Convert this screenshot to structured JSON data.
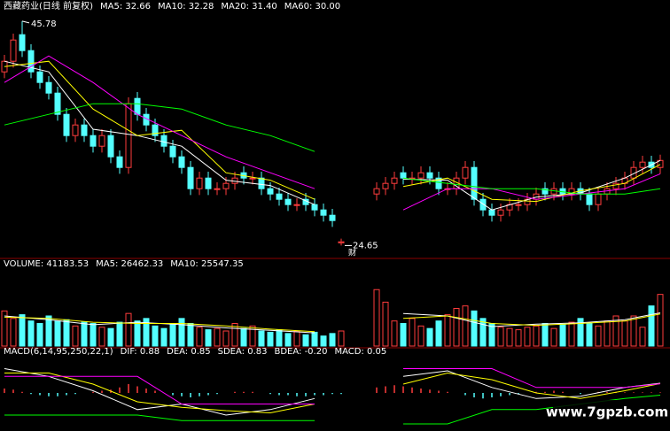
{
  "chart_data": [
    {
      "type": "candlestick",
      "title": "西藏药业(日线 前复权)",
      "xlim": [
        -0.5,
        74.5
      ],
      "ylim": [
        23.6,
        46.6
      ],
      "up_color": "#ff3c3c",
      "down_color": "#54ffff",
      "open": [
        41,
        42,
        44.5,
        43,
        41,
        40,
        39,
        37,
        35,
        36,
        35,
        34,
        35,
        33,
        32,
        38.5,
        37,
        36,
        35,
        34,
        33,
        32,
        30,
        31,
        30,
        30,
        30.5,
        31.5,
        31,
        31,
        30,
        29.5,
        29,
        28.5,
        29,
        28.5,
        28,
        27.5,
        24.9,
        null,
        null,
        null,
        29.5,
        30,
        30.5,
        31.5,
        31,
        31,
        31.5,
        31,
        30,
        30,
        31,
        32,
        29,
        28,
        27.5,
        28,
        28.5,
        28.5,
        29,
        30,
        29.5,
        30,
        29.5,
        30,
        29.5,
        28.5,
        29.5,
        30,
        30.5,
        31,
        32,
        32.5,
        32
      ],
      "high": [
        42.6,
        44.6,
        45.78,
        43.6,
        41.6,
        40.6,
        39.6,
        37.6,
        36.6,
        36.6,
        35.6,
        35.6,
        35.6,
        33.6,
        38.6,
        39.1,
        37.6,
        36.6,
        35.6,
        34.6,
        33.6,
        32.6,
        31.6,
        31.6,
        30.6,
        31.1,
        31.6,
        32.1,
        31.6,
        31.6,
        30.6,
        30.1,
        29.6,
        29.1,
        29.6,
        29.1,
        28.6,
        28.1,
        25.3,
        null,
        null,
        null,
        30.6,
        31.1,
        31.6,
        32.1,
        31.6,
        32.1,
        32.1,
        31.6,
        30.6,
        31.6,
        32.6,
        32.6,
        29.6,
        28.6,
        28.6,
        29.1,
        29.1,
        29.6,
        30.1,
        30.6,
        30.6,
        30.6,
        30.6,
        30.6,
        30.1,
        30.1,
        30.6,
        31.1,
        31.6,
        32.6,
        33.1,
        33.1,
        33.2
      ],
      "low": [
        40.4,
        41.4,
        42.4,
        40.4,
        39.4,
        38.4,
        36.4,
        34.4,
        34.4,
        34.4,
        33.4,
        33.4,
        32.4,
        31.4,
        31.4,
        36.4,
        35.4,
        34.4,
        33.4,
        32.4,
        31.4,
        29.4,
        29.4,
        29.4,
        29.4,
        29.4,
        29.9,
        30.4,
        30.4,
        29.4,
        28.9,
        28.4,
        27.9,
        27.9,
        27.9,
        27.4,
        26.9,
        26.4,
        24.65,
        null,
        null,
        null,
        28.9,
        29.4,
        29.9,
        30.4,
        30.4,
        30.4,
        30.4,
        29.4,
        29.4,
        29.4,
        30.4,
        28.4,
        27.4,
        26.9,
        26.9,
        27.4,
        27.9,
        27.9,
        28.4,
        28.9,
        28.9,
        28.9,
        28.9,
        28.9,
        27.9,
        27.9,
        28.9,
        29.4,
        29.9,
        30.4,
        31.4,
        31.4,
        31.4
      ],
      "close": [
        42,
        44,
        43,
        41,
        40,
        39,
        37,
        35,
        36,
        35,
        34,
        35,
        33,
        32,
        38,
        37,
        36,
        35,
        34,
        33,
        32,
        30,
        31,
        30,
        30,
        30.5,
        31,
        31,
        31,
        30,
        29.5,
        29,
        28.5,
        28.5,
        28.5,
        28,
        27.5,
        27,
        25,
        null,
        null,
        null,
        30,
        30.5,
        31,
        31,
        31,
        31.5,
        31,
        30,
        30,
        31,
        32,
        29,
        28,
        27.5,
        28,
        28.5,
        28.5,
        29,
        29.5,
        29.5,
        30,
        29.5,
        30,
        29.5,
        28.5,
        29.5,
        30,
        30.5,
        31,
        32,
        32.5,
        32,
        32.66
      ],
      "max_label": {
        "value": 45.78,
        "x": 2
      },
      "min_label": {
        "value": 24.65,
        "x": 38
      },
      "event_marker": "财",
      "series": [
        {
          "name": "MA5: 32.66",
          "color": "#ffffff",
          "x": [
            0,
            5,
            10,
            15,
            20,
            25,
            30,
            35,
            40,
            45,
            50,
            55,
            60,
            65,
            70,
            74
          ],
          "values": [
            42,
            41,
            35.6,
            35,
            34,
            30.8,
            30.3,
            28.5,
            null,
            30.9,
            30.8,
            28,
            29.2,
            29.6,
            31,
            32.66
          ]
        },
        {
          "name": "MA10: 32.28",
          "color": "#ffff00",
          "x": [
            0,
            5,
            10,
            15,
            20,
            25,
            30,
            35,
            40,
            45,
            50,
            55,
            60,
            65,
            70,
            74
          ],
          "values": [
            41.5,
            42,
            37.5,
            35,
            35.5,
            31.5,
            30.8,
            29,
            null,
            30.2,
            31,
            29,
            28.8,
            29.8,
            30.5,
            32.28
          ]
        },
        {
          "name": "MA20: 31.40",
          "color": "#ff00ff",
          "x": [
            0,
            5,
            10,
            15,
            20,
            25,
            30,
            35,
            40,
            45,
            50,
            55,
            60,
            65,
            70,
            74
          ],
          "values": [
            40,
            42.5,
            40,
            37,
            35,
            33,
            31.5,
            30,
            null,
            28,
            30,
            30,
            29,
            29.5,
            30,
            31.4
          ]
        },
        {
          "name": "MA60: 30.00",
          "color": "#00ff00",
          "x": [
            0,
            5,
            10,
            15,
            20,
            25,
            30,
            35,
            40,
            45,
            50,
            55,
            60,
            65,
            70,
            74
          ],
          "values": [
            36,
            37,
            38,
            38,
            37.5,
            36,
            35,
            33.5,
            null,
            31,
            30.5,
            30,
            30,
            29.5,
            29.5,
            30
          ]
        }
      ]
    },
    {
      "type": "bar",
      "title": "VOLUME: 41183.53",
      "xlim": [
        -0.5,
        74.5
      ],
      "ylim": [
        0,
        60000
      ],
      "up_color": "#ff3c3c",
      "down_color": "#54ffff",
      "values": [
        28000,
        22000,
        25000,
        20000,
        18000,
        24000,
        20000,
        21000,
        16000,
        19000,
        18000,
        15000,
        14000,
        19000,
        26000,
        20000,
        22000,
        16000,
        14000,
        17000,
        22000,
        18000,
        15000,
        13000,
        14000,
        12000,
        18000,
        14000,
        16000,
        12000,
        11000,
        13000,
        10000,
        12000,
        9000,
        11000,
        8000,
        10000,
        12000,
        null,
        null,
        null,
        45000,
        35000,
        20000,
        18000,
        22000,
        16000,
        14000,
        20000,
        25000,
        30000,
        32000,
        28000,
        22000,
        18000,
        15000,
        14000,
        13000,
        15000,
        16000,
        18000,
        14000,
        17000,
        19000,
        22000,
        18000,
        16000,
        20000,
        24000,
        20000,
        24000,
        15000,
        32000,
        41183.53
      ],
      "series": [
        {
          "name": "MA5: 26462.33",
          "color": "#ffffff",
          "x": [
            0,
            5,
            10,
            15,
            20,
            25,
            30,
            35,
            40,
            45,
            50,
            55,
            60,
            65,
            70,
            74
          ],
          "values": [
            24000,
            21000,
            17000,
            19000,
            17000,
            14500,
            12500,
            10500,
            null,
            26000,
            24000,
            15500,
            17500,
            18500,
            21000,
            26462.33
          ]
        },
        {
          "name": "MA10: 25547.35",
          "color": "#ffff00",
          "x": [
            0,
            5,
            10,
            15,
            20,
            25,
            30,
            35,
            40,
            45,
            50,
            55,
            60,
            65,
            70,
            74
          ],
          "values": [
            23000,
            22000,
            19000,
            18000,
            18000,
            16000,
            13500,
            11500,
            null,
            22000,
            24000,
            18000,
            16500,
            18000,
            20000,
            25547.35
          ]
        }
      ]
    },
    {
      "type": "bar",
      "title": "MACD(6,14,95,250,22,1)",
      "xlim": [
        -0.5,
        74.5
      ],
      "ylim": [
        -3.2,
        3.2
      ],
      "up_color": "#ff3c3c",
      "down_color": "#54ffff",
      "values_name": "MACD: 0.05",
      "values": [
        0.4,
        0.3,
        0.1,
        -0.1,
        -0.2,
        -0.3,
        -0.3,
        -0.2,
        -0.1,
        0,
        0.1,
        0.2,
        0.3,
        0.5,
        0.8,
        0.6,
        0.4,
        0.2,
        0,
        -0.2,
        -0.3,
        -0.4,
        -0.3,
        -0.2,
        -0.1,
        0,
        0.1,
        0.1,
        0.1,
        0,
        -0.1,
        -0.2,
        -0.2,
        -0.3,
        -0.3,
        -0.2,
        -0.2,
        -0.1,
        -0.1,
        null,
        null,
        null,
        0.5,
        0.6,
        0.7,
        0.6,
        0.5,
        0.4,
        0.3,
        0.2,
        0.1,
        0,
        -0.2,
        -0.4,
        -0.5,
        -0.4,
        -0.3,
        -0.2,
        -0.1,
        0,
        0.1,
        0.1,
        0.2,
        0.1,
        0,
        -0.1,
        0,
        0.1,
        0.1,
        0.1,
        0.05,
        0.05,
        0.05,
        0.05,
        0.05
      ],
      "series": [
        {
          "name": "DIF: 0.88",
          "color": "#ffffff",
          "x": [
            0,
            5,
            10,
            15,
            20,
            25,
            30,
            35,
            40,
            45,
            50,
            55,
            60,
            65,
            70,
            74
          ],
          "values": [
            2.2,
            1.5,
            0.2,
            -1.5,
            -1.0,
            -2.0,
            -1.5,
            -0.5,
            null,
            1.5,
            2.0,
            0.5,
            -0.5,
            -0.3,
            0.5,
            0.88
          ]
        },
        {
          "name": "DEA: 0.85",
          "color": "#ffff00",
          "x": [
            0,
            5,
            10,
            15,
            20,
            25,
            30,
            35,
            40,
            45,
            50,
            55,
            60,
            65,
            70,
            74
          ],
          "values": [
            1.8,
            1.8,
            0.8,
            -0.8,
            -1.3,
            -1.6,
            -1.8,
            -1.0,
            null,
            0.8,
            1.8,
            1.2,
            0,
            -0.5,
            0.2,
            0.85
          ]
        },
        {
          "name": "SDEA: 0.83",
          "color": "#ff00ff",
          "x": [
            0,
            5,
            10,
            15,
            20,
            25,
            30,
            35,
            40,
            45,
            50,
            55,
            60,
            65,
            70,
            74
          ],
          "values": [
            1.5,
            1.5,
            1.5,
            1.5,
            -1.0,
            -1.0,
            -1.0,
            -1.0,
            null,
            2.2,
            2.2,
            2.2,
            0.5,
            0.5,
            0.5,
            0.83
          ]
        },
        {
          "name": "BDEA: -0.20",
          "color": "#00ff00",
          "x": [
            0,
            5,
            10,
            15,
            20,
            25,
            30,
            35,
            40,
            45,
            50,
            55,
            60,
            65,
            70,
            74
          ],
          "values": [
            -2,
            -2,
            -2,
            -2,
            -2.5,
            -2.5,
            -2.5,
            -2.5,
            null,
            -2.8,
            -2.8,
            -1.5,
            -1.5,
            -1.0,
            -0.5,
            -0.2
          ]
        }
      ]
    }
  ],
  "watermark": "www.7gpzb.com"
}
